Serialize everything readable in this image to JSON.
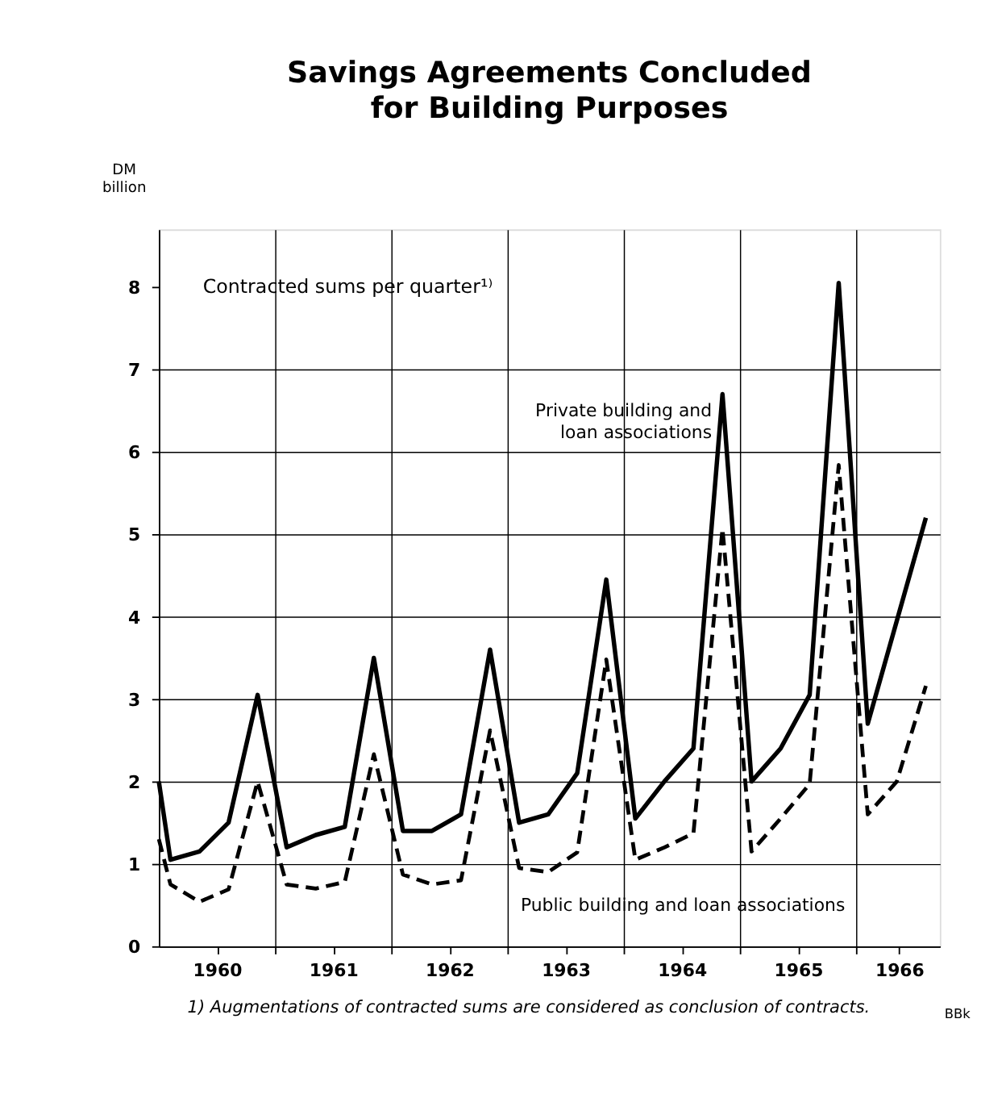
{
  "chart_data": {
    "type": "line",
    "title": "Savings Agreements Concluded\nfor Building Purposes",
    "ylabel": "DM\nbillion",
    "x": [
      1960.0,
      1960.1,
      1960.35,
      1960.6,
      1960.85,
      1961.1,
      1961.35,
      1961.6,
      1961.85,
      1962.1,
      1962.35,
      1962.6,
      1962.85,
      1963.1,
      1963.35,
      1963.6,
      1963.85,
      1964.1,
      1964.35,
      1964.6,
      1964.85,
      1965.1,
      1965.35,
      1965.6,
      1965.85,
      1966.1,
      1966.35,
      1966.6
    ],
    "series": [
      {
        "name": "Private building and loan associations",
        "color": "#000000",
        "line_style": "solid",
        "values": [
          2.0,
          1.05,
          1.15,
          1.5,
          3.05,
          1.2,
          1.35,
          1.45,
          3.5,
          1.4,
          1.4,
          1.6,
          3.6,
          1.5,
          1.6,
          2.1,
          4.45,
          1.55,
          2.0,
          2.4,
          6.7,
          2.0,
          2.4,
          3.05,
          8.05,
          2.7,
          3.95,
          5.2
        ]
      },
      {
        "name": "Public building and loan associations",
        "color": "#000000",
        "line_style": "dashed",
        "values": [
          1.3,
          0.75,
          0.54,
          0.69,
          2.0,
          0.75,
          0.7,
          0.78,
          2.33,
          0.87,
          0.75,
          0.8,
          2.62,
          0.95,
          0.9,
          1.14,
          3.48,
          1.05,
          1.2,
          1.37,
          5.07,
          1.15,
          1.55,
          1.97,
          5.84,
          1.6,
          2.0,
          3.16
        ]
      }
    ],
    "xlim": [
      1960.0,
      1966.72
    ],
    "xticks": [
      {
        "value": 1960.5,
        "label": "1960"
      },
      {
        "value": 1961,
        "label": null
      },
      {
        "value": 1961.5,
        "label": "1961"
      },
      {
        "value": 1962,
        "label": null
      },
      {
        "value": 1962.5,
        "label": "1962"
      },
      {
        "value": 1963,
        "label": null
      },
      {
        "value": 1963.5,
        "label": "1963"
      },
      {
        "value": 1964,
        "label": null
      },
      {
        "value": 1964.5,
        "label": "1964"
      },
      {
        "value": 1965,
        "label": null
      },
      {
        "value": 1965.5,
        "label": "1965"
      },
      {
        "value": 1966,
        "label": null
      },
      {
        "value": 1966.37,
        "label": "1966"
      }
    ],
    "ylim": [
      0,
      8.7
    ],
    "yticks": [
      0,
      1,
      2,
      3,
      4,
      5,
      6,
      7,
      8
    ],
    "grid": true,
    "marker": "none",
    "annotations": [
      "Contracted sums per quarter¹⁾",
      "1) Augmentations of contracted sums are considered as conclusion of contracts.",
      "BBk"
    ]
  }
}
